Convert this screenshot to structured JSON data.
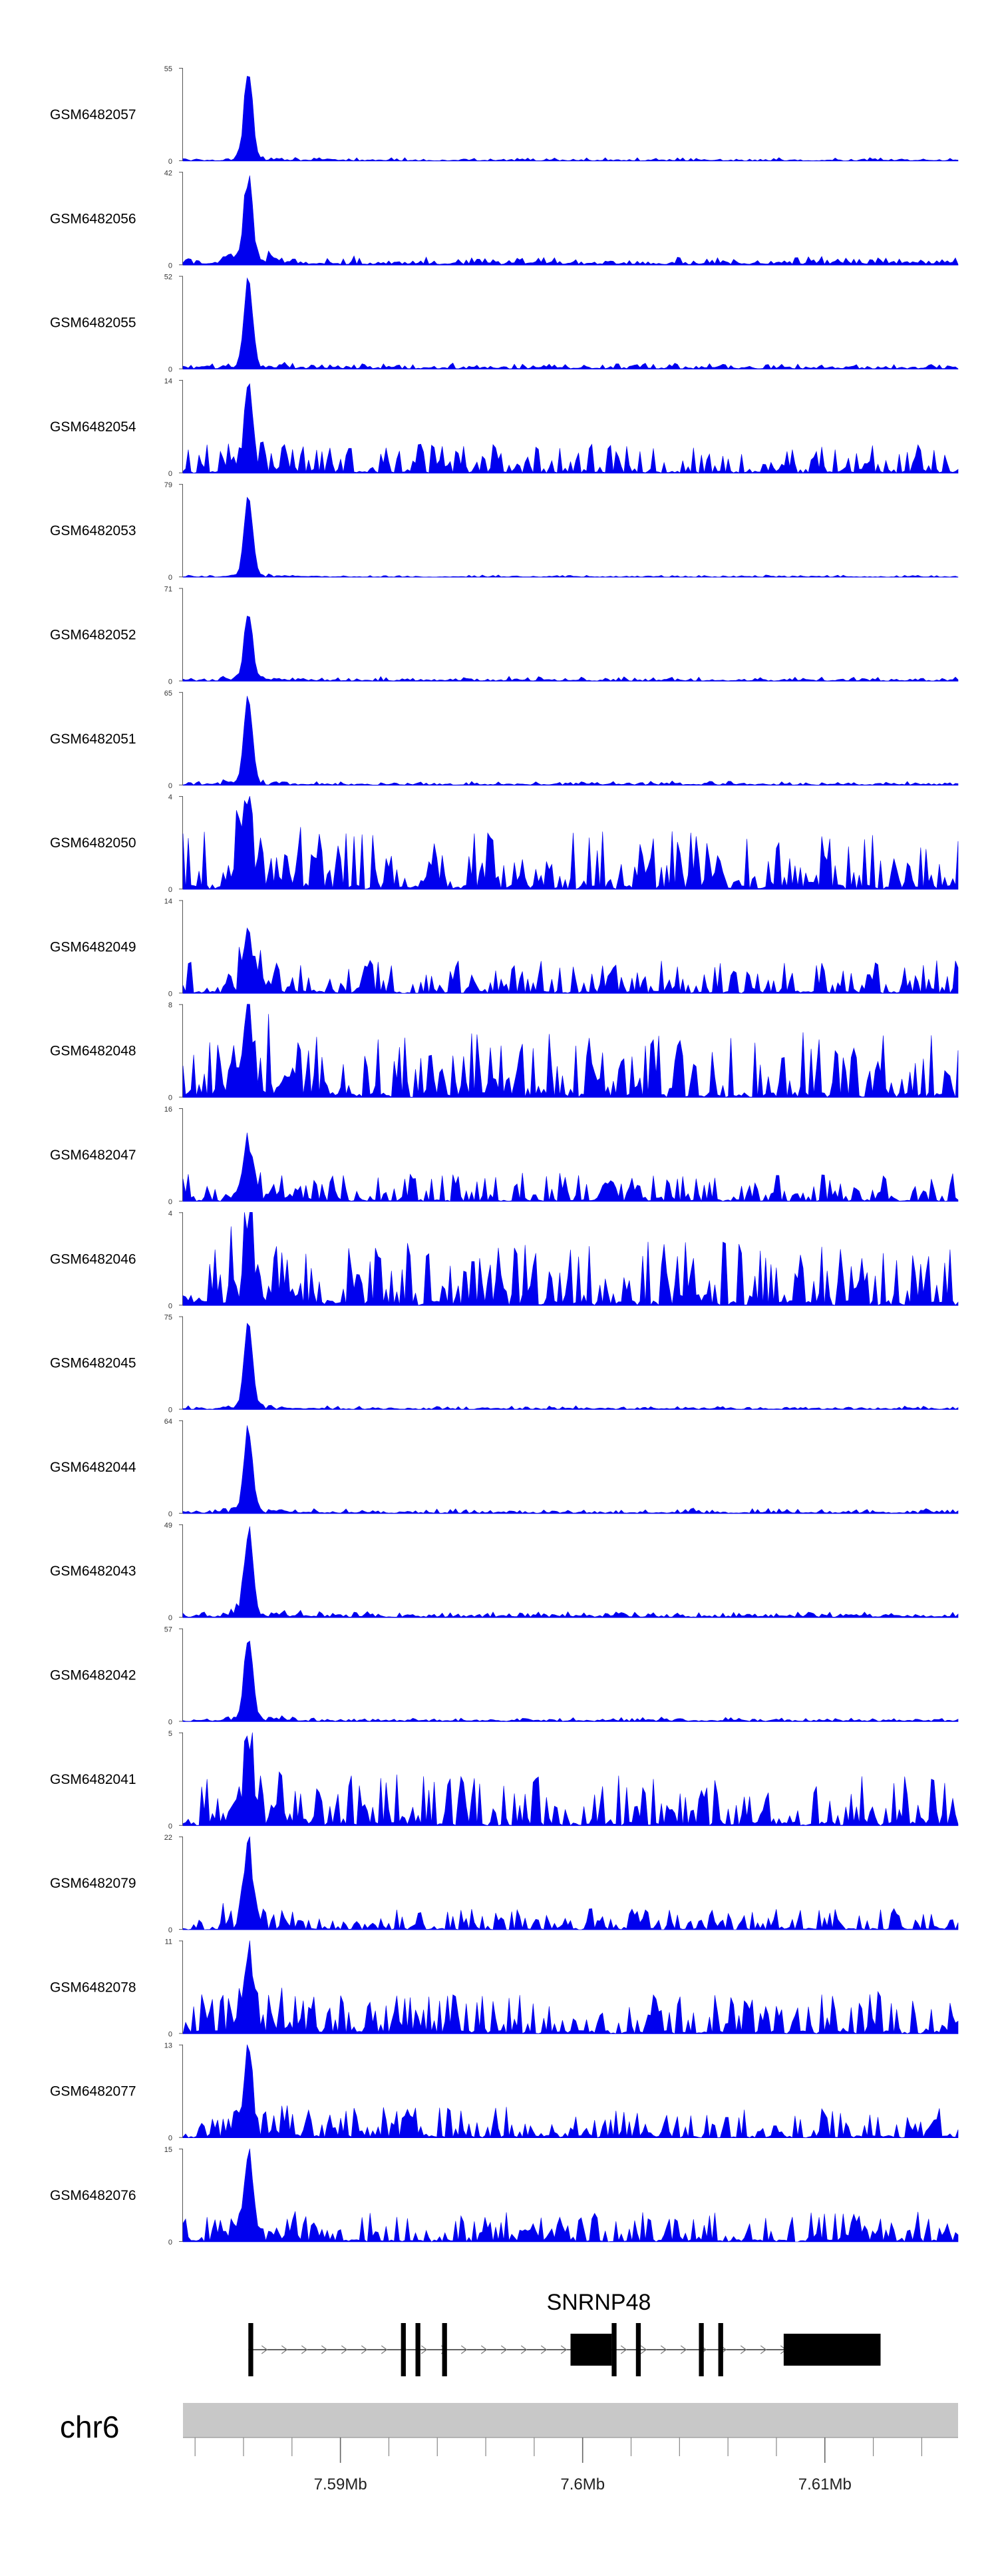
{
  "chart_data": {
    "type": "area",
    "colors": {
      "signal": "#0000ee",
      "axis": "#555555",
      "ideogram": "#c8c8c8",
      "gene": "#000000"
    },
    "xlim": [
      7.5835,
      7.6155
    ],
    "tracks": [
      {
        "name": "GSM6482057",
        "ymax": "55",
        "ymax_value": 55,
        "peak": 55,
        "background": 4,
        "noise": 0.5,
        "spiky": false
      },
      {
        "name": "GSM6482056",
        "ymax": "42",
        "ymax_value": 42,
        "peak": 40,
        "background": 7,
        "noise": 0.6,
        "spiky": false
      },
      {
        "name": "GSM6482055",
        "ymax": "52",
        "ymax_value": 52,
        "peak": 50,
        "background": 5,
        "noise": 0.7,
        "spiky": false
      },
      {
        "name": "GSM6482054",
        "ymax": "14",
        "ymax_value": 14,
        "peak": 13,
        "background": 3.5,
        "noise": 1.0,
        "spiky": true
      },
      {
        "name": "GSM6482053",
        "ymax": "79",
        "ymax_value": 79,
        "peak": 77,
        "background": 4,
        "noise": 0.5,
        "spiky": false
      },
      {
        "name": "GSM6482052",
        "ymax": "71",
        "ymax_value": 71,
        "peak": 50,
        "background": 6,
        "noise": 0.6,
        "spiky": false
      },
      {
        "name": "GSM6482051",
        "ymax": "65",
        "ymax_value": 65,
        "peak": 63,
        "background": 5,
        "noise": 0.6,
        "spiky": false
      },
      {
        "name": "GSM6482050",
        "ymax": "4",
        "ymax_value": 4,
        "peak": 3,
        "background": 2,
        "noise": 1.0,
        "spiky": true
      },
      {
        "name": "GSM6482049",
        "ymax": "14",
        "ymax_value": 14,
        "peak": 9,
        "background": 4,
        "noise": 1.0,
        "spiky": true
      },
      {
        "name": "GSM6482048",
        "ymax": "8",
        "ymax_value": 8,
        "peak": 6,
        "background": 4.5,
        "noise": 1.0,
        "spiky": true
      },
      {
        "name": "GSM6482047",
        "ymax": "16",
        "ymax_value": 16,
        "peak": 10,
        "background": 4,
        "noise": 1.0,
        "spiky": true
      },
      {
        "name": "GSM6482046",
        "ymax": "4",
        "ymax_value": 4,
        "peak": 3,
        "background": 2.2,
        "noise": 1.0,
        "spiky": true
      },
      {
        "name": "GSM6482045",
        "ymax": "75",
        "ymax_value": 75,
        "peak": 73,
        "background": 5,
        "noise": 0.6,
        "spiky": false
      },
      {
        "name": "GSM6482044",
        "ymax": "64",
        "ymax_value": 64,
        "peak": 62,
        "background": 6,
        "noise": 0.6,
        "spiky": false
      },
      {
        "name": "GSM6482043",
        "ymax": "49",
        "ymax_value": 49,
        "peak": 47,
        "background": 6,
        "noise": 0.6,
        "spiky": false
      },
      {
        "name": "GSM6482042",
        "ymax": "57",
        "ymax_value": 57,
        "peak": 55,
        "background": 5,
        "noise": 0.6,
        "spiky": false
      },
      {
        "name": "GSM6482041",
        "ymax": "5",
        "ymax_value": 5,
        "peak": 3,
        "background": 2.2,
        "noise": 1.0,
        "spiky": true
      },
      {
        "name": "GSM6482079",
        "ymax": "22",
        "ymax_value": 22,
        "peak": 21,
        "background": 4,
        "noise": 0.8,
        "spiky": true
      },
      {
        "name": "GSM6482078",
        "ymax": "11",
        "ymax_value": 11,
        "peak": 10,
        "background": 4,
        "noise": 0.9,
        "spiky": true
      },
      {
        "name": "GSM6482077",
        "ymax": "13",
        "ymax_value": 13,
        "peak": 12,
        "background": 3.5,
        "noise": 0.9,
        "spiky": true
      },
      {
        "name": "GSM6482076",
        "ymax": "15",
        "ymax_value": 15,
        "peak": 14,
        "background": 4,
        "noise": 0.9,
        "spiky": true
      }
    ],
    "peak_position_mb": 7.5862,
    "gene": {
      "name": "SNRNP48",
      "start_mb": 7.5862,
      "end_mb": 7.6123,
      "exons": [
        {
          "start_mb": 7.5862,
          "end_mb": 7.5864,
          "coding": true
        },
        {
          "start_mb": 7.5925,
          "end_mb": 7.5927,
          "coding": true
        },
        {
          "start_mb": 7.5931,
          "end_mb": 7.5933,
          "coding": true
        },
        {
          "start_mb": 7.5942,
          "end_mb": 7.5944,
          "coding": true
        },
        {
          "start_mb": 7.5995,
          "end_mb": 7.6012,
          "coding": true
        },
        {
          "start_mb": 7.6012,
          "end_mb": 7.6014,
          "coding": true
        },
        {
          "start_mb": 7.6022,
          "end_mb": 7.6024,
          "coding": true
        },
        {
          "start_mb": 7.6048,
          "end_mb": 7.605,
          "coding": true
        },
        {
          "start_mb": 7.6056,
          "end_mb": 7.6058,
          "coding": true
        },
        {
          "start_mb": 7.6083,
          "end_mb": 7.6123,
          "coding": true
        }
      ]
    },
    "chromosome": "chr6",
    "x_ticks": [
      {
        "value": 7.59,
        "label": "7.59Mb"
      },
      {
        "value": 7.6,
        "label": "7.6Mb"
      },
      {
        "value": 7.61,
        "label": "7.61Mb"
      }
    ],
    "minor_tick_step_mb": 0.002,
    "y_min_label": "0"
  }
}
